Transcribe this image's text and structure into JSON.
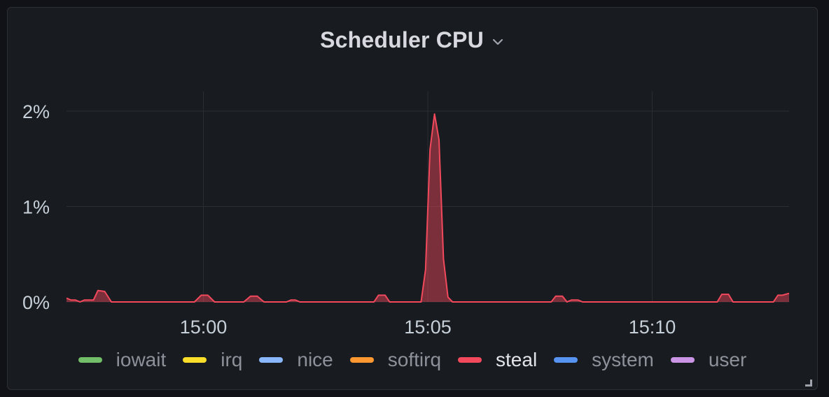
{
  "panel": {
    "title": "Scheduler CPU",
    "menu_icon": "chevron-down-icon",
    "resize_icon": "resize-corner-icon"
  },
  "chart_data": {
    "type": "area",
    "title": "Scheduler CPU",
    "xlabel": "",
    "ylabel": "",
    "x_tick_labels": [
      "15:00",
      "15:05",
      "15:10"
    ],
    "x_tick_minutes": [
      0,
      5,
      10
    ],
    "y_tick_labels": [
      "0%",
      "1%",
      "2%"
    ],
    "y_tick_values": [
      0,
      1,
      2
    ],
    "xlim": [
      -3.05,
      13.05
    ],
    "ylim": [
      0,
      2.2
    ],
    "grid": true,
    "legend_position": "bottom",
    "legend": [
      {
        "name": "iowait",
        "color": "#73bf69"
      },
      {
        "name": "irq",
        "color": "#fade2a"
      },
      {
        "name": "nice",
        "color": "#8ab8ff"
      },
      {
        "name": "softirq",
        "color": "#ff9830"
      },
      {
        "name": "steal",
        "color": "#f2495c",
        "active": true
      },
      {
        "name": "system",
        "color": "#5794f2"
      },
      {
        "name": "user",
        "color": "#ca95e5"
      }
    ],
    "series": [
      {
        "name": "steal",
        "color": "#f2495c",
        "x": [
          -3.05,
          -2.95,
          -2.85,
          -2.75,
          -2.65,
          -2.45,
          -2.35,
          -2.2,
          -2.05,
          -1.95,
          -0.2,
          -0.05,
          0.1,
          0.25,
          0.9,
          1.05,
          1.2,
          1.35,
          1.85,
          1.95,
          2.05,
          2.15,
          3.8,
          3.9,
          4.05,
          4.15,
          4.85,
          4.95,
          5.05,
          5.15,
          5.25,
          5.35,
          5.45,
          5.55,
          7.75,
          7.85,
          8.0,
          8.1,
          8.2,
          8.35,
          8.45,
          11.45,
          11.55,
          11.7,
          11.8,
          12.7,
          12.8,
          12.9,
          13.05
        ],
        "values": [
          0.04,
          0.02,
          0.02,
          0.0,
          0.02,
          0.02,
          0.12,
          0.11,
          0.0,
          0.0,
          0.0,
          0.07,
          0.07,
          0.0,
          0.0,
          0.06,
          0.06,
          0.0,
          0.0,
          0.02,
          0.02,
          0.0,
          0.0,
          0.07,
          0.07,
          0.0,
          0.0,
          0.34,
          1.6,
          1.97,
          1.7,
          0.45,
          0.05,
          0.0,
          0.0,
          0.06,
          0.06,
          0.0,
          0.02,
          0.02,
          0.0,
          0.0,
          0.08,
          0.08,
          0.0,
          0.0,
          0.07,
          0.07,
          0.09
        ]
      }
    ]
  }
}
